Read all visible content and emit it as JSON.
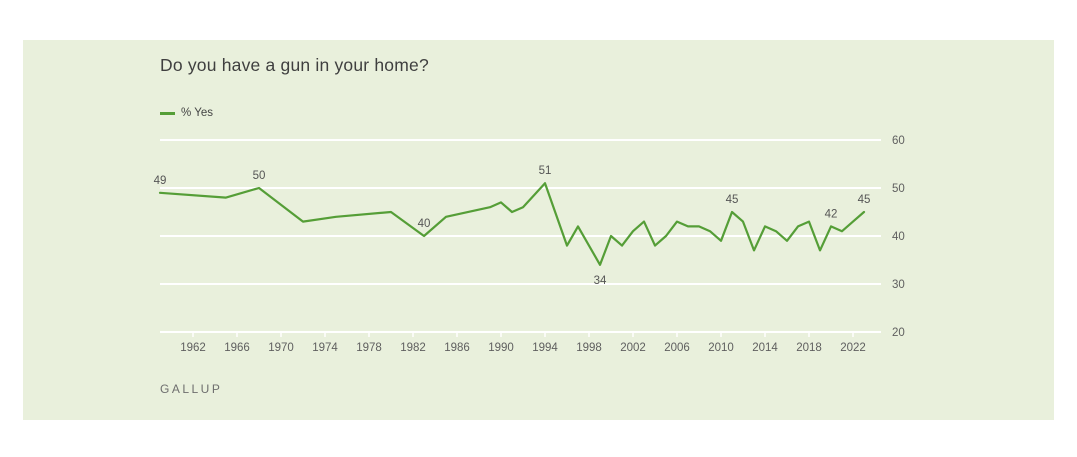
{
  "card": {
    "background": "#e9f0dc"
  },
  "chart_data": {
    "type": "line",
    "title": "Do you have a gun in your home?",
    "legend": [
      "% Yes"
    ],
    "legend_position": "top-left",
    "source": "GALLUP",
    "grid": true,
    "xlabel": "",
    "ylabel": "",
    "ylim": [
      20,
      60
    ],
    "y_ticks": [
      20,
      30,
      40,
      50,
      60
    ],
    "y_axis_side": "right",
    "x_ticks": [
      1962,
      1966,
      1970,
      1974,
      1978,
      1982,
      1986,
      1990,
      1994,
      1998,
      2002,
      2006,
      2010,
      2014,
      2018,
      2022
    ],
    "series": [
      {
        "name": "% Yes",
        "x": [
          1959,
          1965,
          1968,
          1972,
          1975,
          1980,
          1983,
          1985,
          1989,
          1990,
          1991,
          1992,
          1994,
          1996,
          1997,
          1999,
          2000,
          2001,
          2002,
          2003,
          2004,
          2005,
          2006,
          2007,
          2008,
          2009,
          2010,
          2011,
          2012,
          2013,
          2014,
          2015,
          2016,
          2017,
          2018,
          2019,
          2020,
          2021,
          2022,
          2023
        ],
        "y": [
          49,
          48,
          50,
          43,
          44,
          45,
          40,
          44,
          46,
          47,
          45,
          46,
          51,
          38,
          42,
          34,
          40,
          38,
          41,
          43,
          38,
          40,
          43,
          42,
          42,
          41,
          39,
          45,
          43,
          37,
          42,
          41,
          39,
          42,
          43,
          37,
          42,
          41,
          43,
          45
        ],
        "color": "#559e37"
      }
    ],
    "annotations": [
      {
        "year": 1959,
        "value": 49,
        "text": "49",
        "placement": "above"
      },
      {
        "year": 1968,
        "value": 50,
        "text": "50",
        "placement": "above"
      },
      {
        "year": 1983,
        "value": 40,
        "text": "40",
        "placement": "above"
      },
      {
        "year": 1994,
        "value": 51,
        "text": "51",
        "placement": "above"
      },
      {
        "year": 1999,
        "value": 34,
        "text": "34",
        "placement": "below"
      },
      {
        "year": 2011,
        "value": 45,
        "text": "45",
        "placement": "above"
      },
      {
        "year": 2020,
        "value": 42,
        "text": "42",
        "placement": "above"
      },
      {
        "year": 2023,
        "value": 45,
        "text": "45",
        "placement": "above"
      }
    ],
    "colors": {
      "line": "#559e37",
      "grid": "#ffffff",
      "axis_text": "#5f5f5f",
      "annotation_text": "#555555",
      "title_text": "#3f3f3f",
      "card_background": "#e9f0dc"
    }
  }
}
